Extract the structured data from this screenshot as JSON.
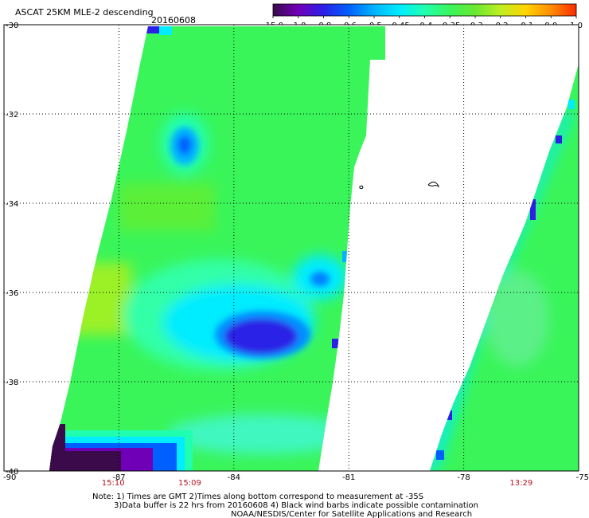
{
  "header": {
    "product": "ASCAT 25KM MLE-2 descending",
    "date": "20160608"
  },
  "colorbar": {
    "labels": [
      "-15.0",
      "-1.0",
      "-0.8",
      "-0.6",
      "-0.5",
      "-0.45",
      "-0.4",
      "-0.35",
      "-0.3",
      "-0.2",
      "-0.1",
      "0.0",
      "1.0"
    ],
    "colors": [
      "#3a0a4a",
      "#7000b8",
      "#2c20e6",
      "#0060ff",
      "#00b4ff",
      "#00ecff",
      "#20ffb0",
      "#39f55a",
      "#6ae830",
      "#bfee22",
      "#ffd400",
      "#ff8c00",
      "#ff2a00"
    ]
  },
  "map": {
    "lat_labels": [
      "-30",
      "-32",
      "-34",
      "-36",
      "-38",
      "-40"
    ],
    "lat_values": [
      -30,
      -32,
      -34,
      -36,
      -38,
      -40
    ],
    "lon_labels": [
      "-90",
      "-87",
      "-84",
      "-81",
      "-78",
      "-75"
    ],
    "lon_values": [
      -90,
      -87,
      -84,
      -81,
      -78,
      -75
    ],
    "times": [
      {
        "label": "15:10",
        "lon": -87.15
      },
      {
        "label": "15:09",
        "lon": -85.15
      },
      {
        "label": "13:29",
        "lon": -76.5
      }
    ],
    "palette": {
      "green": "#39f55a",
      "light_green": "#6ae830",
      "cyan": "#00ecff",
      "aqua": "#20ffb0",
      "blue": "#0060ff",
      "deep_blue": "#2c20e6",
      "violet": "#7000b8",
      "dark": "#3a0a4a",
      "yellow_green": "#a8f020"
    }
  },
  "footer": {
    "note_line1": "Note: 1) Times are GMT 2)Times along bottom correspond to measurement at -35S",
    "note_line2": "3)Data buffer is 22 hrs from 20160608 4) Black wind barbs indicate possible contamination",
    "credit": "NOAA/NESDIS/Center for Satellite Applications and Research"
  }
}
